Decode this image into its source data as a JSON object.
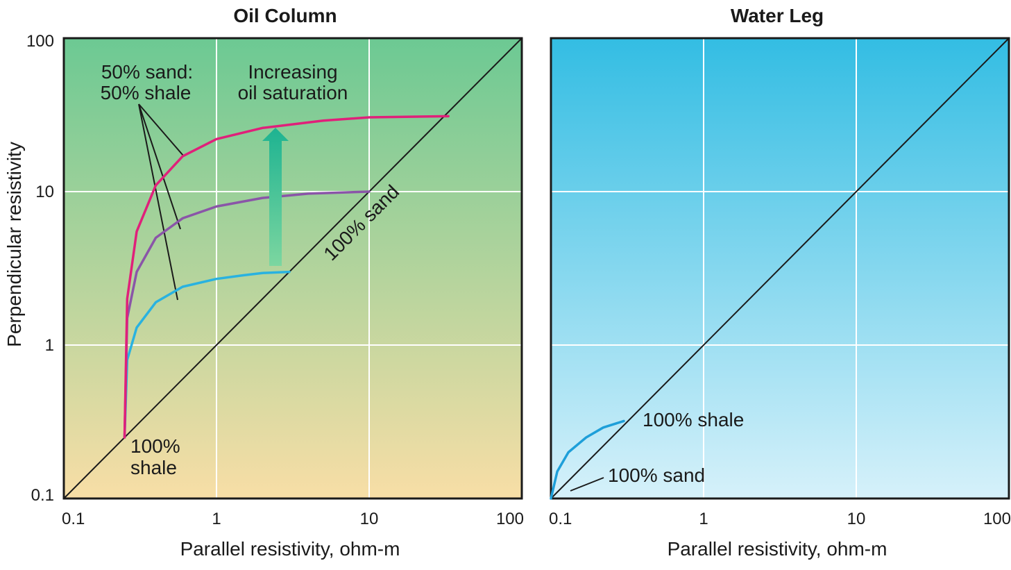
{
  "chart_data": [
    {
      "type": "line",
      "title": "Oil Column",
      "xlabel": "Parallel resistivity, ohm-m",
      "ylabel": "Perpendicular resistivity",
      "xscale": "log",
      "yscale": "log",
      "xlim": [
        0.1,
        100
      ],
      "ylim": [
        0.1,
        100
      ],
      "grid": true,
      "x_ticks": [
        "0.1",
        "1",
        "10",
        "100"
      ],
      "y_ticks": [
        "0.1",
        "1",
        "10",
        "100"
      ],
      "background": {
        "top": "#6cc993",
        "bottom": "#f8dea6"
      },
      "reference_line": {
        "label": "100% sand",
        "x": [
          0.1,
          100
        ],
        "y": [
          0.1,
          100
        ],
        "color": "#1a1a1a"
      },
      "series": [
        {
          "color": "#29b2e0",
          "x": [
            0.25,
            0.26,
            0.3,
            0.4,
            0.6,
            1.0,
            1.5,
            2.0,
            3.0
          ],
          "y": [
            0.25,
            0.8,
            1.3,
            1.9,
            2.4,
            2.7,
            2.85,
            2.95,
            3.0
          ]
        },
        {
          "color": "#8a55a8",
          "x": [
            0.25,
            0.26,
            0.3,
            0.4,
            0.6,
            1.0,
            2.0,
            4.0,
            10.0
          ],
          "y": [
            0.25,
            1.5,
            3.0,
            5.0,
            6.7,
            8.0,
            9.1,
            9.7,
            10.0
          ]
        },
        {
          "color": "#e0207a",
          "x": [
            0.25,
            0.26,
            0.3,
            0.4,
            0.6,
            1.0,
            2.0,
            5.0,
            10.0,
            33.0
          ],
          "y": [
            0.25,
            2.0,
            5.5,
            11.0,
            17.0,
            22.0,
            26.0,
            29.0,
            30.5,
            31.0
          ]
        }
      ],
      "annotations": {
        "mix_label": [
          "50% sand:",
          "50% shale"
        ],
        "saturation_label": [
          "Increasing",
          "oil saturation"
        ],
        "shale_label": [
          "100%",
          "shale"
        ],
        "sand_label": "100% sand"
      },
      "arrow": {
        "color_top": "#1db391",
        "color_bottom": "#7cd6a0",
        "x": 2.5,
        "y_from": 3.0,
        "y_to": 30.0
      }
    },
    {
      "type": "line",
      "title": "Water Leg",
      "xlabel": "Parallel resistivity, ohm-m",
      "xscale": "log",
      "yscale": "log",
      "xlim": [
        0.1,
        100
      ],
      "ylim": [
        0.1,
        100
      ],
      "grid": true,
      "x_ticks": [
        "0.1",
        "1",
        "10",
        "100"
      ],
      "background": {
        "top": "#33bde3",
        "bottom": "#d6f1fa"
      },
      "reference_line": {
        "x": [
          0.1,
          100
        ],
        "y": [
          0.1,
          100
        ],
        "color": "#1a1a1a"
      },
      "series": [
        {
          "color": "#1e9fd9",
          "x": [
            0.1,
            0.11,
            0.13,
            0.17,
            0.22,
            0.3
          ],
          "y": [
            0.1,
            0.15,
            0.2,
            0.25,
            0.29,
            0.32
          ]
        }
      ],
      "annotations": {
        "shale_label": "100% shale",
        "sand_label": "100% sand"
      }
    }
  ]
}
